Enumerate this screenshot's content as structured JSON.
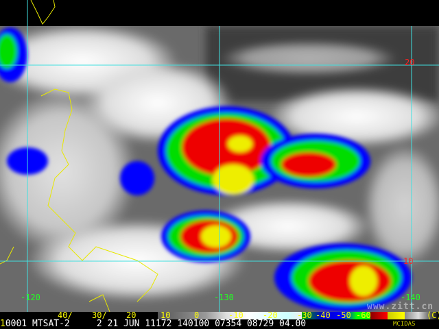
{
  "image": {
    "satellite": "MTSAT-2",
    "status_line": {
      "frame": "1",
      "text": "0001 MTSAT-2     2 21 JUN 11172 140100 07354 08729 04.00"
    },
    "software_label": "MCIDAS",
    "watermark": "www.zitt.cn",
    "longitude_labels": [
      "-120",
      "-130",
      "-140"
    ],
    "latitude_labels": [
      "20",
      "10"
    ],
    "color_scale": {
      "ticks": [
        "40/",
        "30/",
        "20",
        "10",
        "0",
        "-10",
        "-20",
        "-30",
        "-40",
        "-50",
        "-60"
      ],
      "unit": "(C)"
    },
    "colors": {
      "grid": "#40e0e0",
      "coastline": "#e8e800",
      "lon_label": "#22ff22",
      "lat_label": "#ff2222"
    }
  }
}
